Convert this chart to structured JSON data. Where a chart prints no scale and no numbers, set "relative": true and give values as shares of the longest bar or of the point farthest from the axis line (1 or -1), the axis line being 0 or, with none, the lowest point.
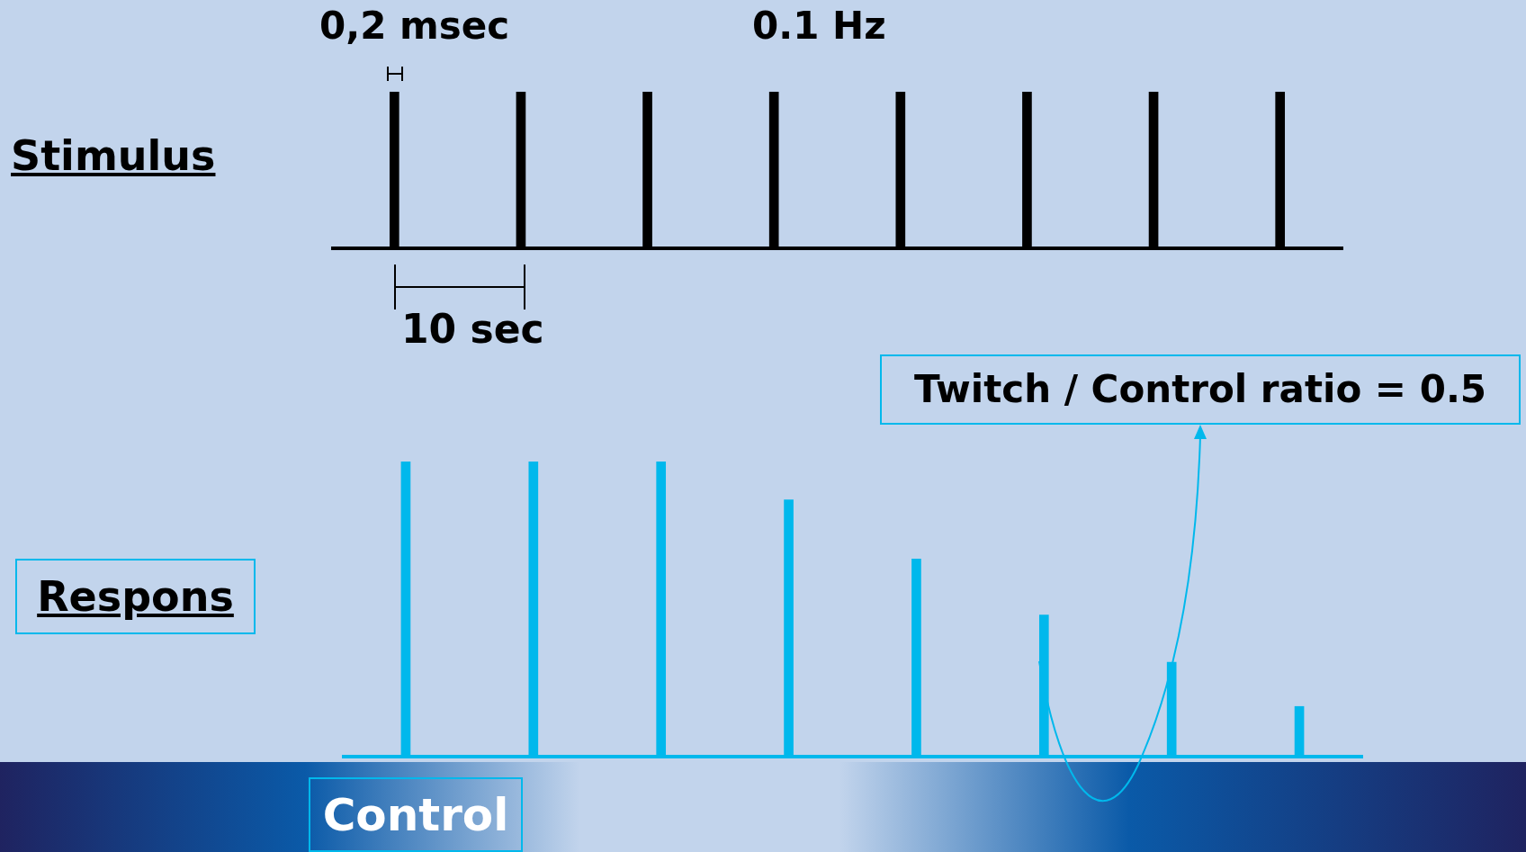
{
  "chart_data": [
    {
      "type": "bar",
      "title": "Stimulus",
      "categories": [
        null,
        null,
        null,
        null,
        null,
        null,
        null,
        null
      ],
      "relative": true,
      "values": [
        1,
        1,
        1,
        1,
        1,
        1,
        1,
        1
      ],
      "color": "#000000",
      "annotations": [
        "0,2 msec",
        "0.1 Hz",
        "10 sec"
      ]
    },
    {
      "type": "bar",
      "title": "Respons",
      "categories": [
        null,
        null,
        null,
        null,
        null,
        null,
        null,
        null
      ],
      "relative": true,
      "values": [
        1,
        1,
        1,
        0.87,
        0.67,
        0.48,
        0.32,
        0.17
      ],
      "color": "#00b8ec",
      "annotations": [
        "Control",
        "Twitch / Control ratio = 0.5"
      ]
    }
  ]
}
